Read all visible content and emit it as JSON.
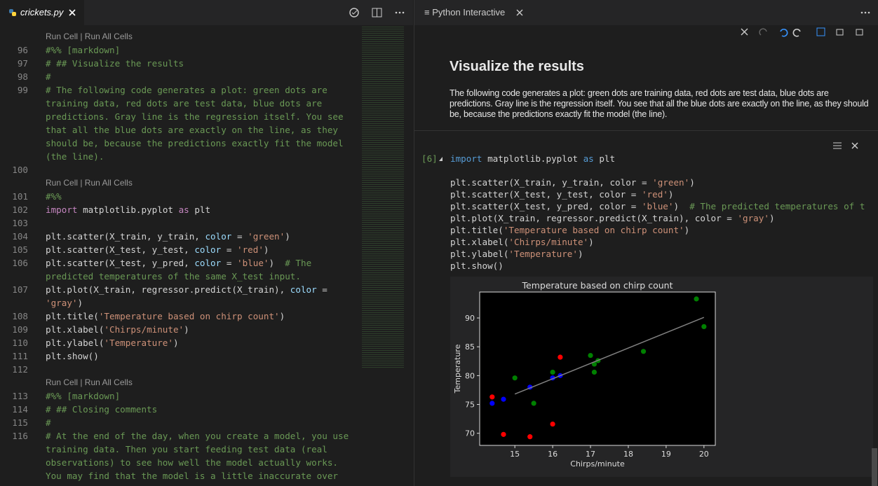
{
  "editor": {
    "tab": "crickets.py",
    "colors": {
      "c": "#6a9955",
      "k": "#c586c0",
      "s": "#ce9178",
      "p": "#9cdcfe",
      "t": "#d4d4d4"
    },
    "rows": [
      {
        "lens": "Run Cell | Run All Cells"
      },
      {
        "num": 96,
        "parts": [
          [
            "#%% [markdown]",
            "c"
          ]
        ]
      },
      {
        "num": 97,
        "parts": [
          [
            "# ## Visualize the results",
            "c"
          ]
        ]
      },
      {
        "num": 98,
        "parts": [
          [
            "#",
            "c"
          ]
        ]
      },
      {
        "num": 99,
        "parts": [
          [
            "# The following code generates a plot: green dots are",
            "c"
          ]
        ]
      },
      {
        "num": null,
        "parts": [
          [
            "training data, red dots are test data, blue dots are",
            "c"
          ]
        ]
      },
      {
        "num": null,
        "parts": [
          [
            "predictions. Gray line is the regression itself. You see",
            "c"
          ]
        ]
      },
      {
        "num": null,
        "parts": [
          [
            "that all the blue dots are exactly on the line, as they",
            "c"
          ]
        ]
      },
      {
        "num": null,
        "parts": [
          [
            "should be, because the predictions exactly fit the model",
            "c"
          ]
        ]
      },
      {
        "num": null,
        "parts": [
          [
            "(the line).",
            "c"
          ]
        ]
      },
      {
        "num": 100,
        "parts": []
      },
      {
        "lens": "Run Cell | Run All Cells"
      },
      {
        "num": 101,
        "parts": [
          [
            "#%%",
            "c"
          ]
        ]
      },
      {
        "num": 102,
        "parts": [
          [
            "import",
            "k"
          ],
          [
            " matplotlib.pyplot ",
            "t"
          ],
          [
            "as",
            "k"
          ],
          [
            " plt",
            "t"
          ]
        ]
      },
      {
        "num": 103,
        "parts": []
      },
      {
        "num": 104,
        "parts": [
          [
            "plt.scatter(X_train, y_train, ",
            "t"
          ],
          [
            "color",
            "p"
          ],
          [
            " = ",
            "t"
          ],
          [
            "'green'",
            "s"
          ],
          [
            ")",
            "t"
          ]
        ]
      },
      {
        "num": 105,
        "parts": [
          [
            "plt.scatter(X_test, y_test, ",
            "t"
          ],
          [
            "color",
            "p"
          ],
          [
            " = ",
            "t"
          ],
          [
            "'red'",
            "s"
          ],
          [
            ")",
            "t"
          ]
        ]
      },
      {
        "num": 106,
        "parts": [
          [
            "plt.scatter(X_test, y_pred, ",
            "t"
          ],
          [
            "color",
            "p"
          ],
          [
            " = ",
            "t"
          ],
          [
            "'blue'",
            "s"
          ],
          [
            ")  ",
            "t"
          ],
          [
            "# The",
            "c"
          ]
        ]
      },
      {
        "num": null,
        "parts": [
          [
            "predicted temperatures of the same X_test input.",
            "c"
          ]
        ]
      },
      {
        "num": 107,
        "parts": [
          [
            "plt.plot(X_train, regressor.predict(X_train), ",
            "t"
          ],
          [
            "color",
            "p"
          ],
          [
            " =",
            "t"
          ]
        ]
      },
      {
        "num": null,
        "parts": [
          [
            "'gray'",
            "s"
          ],
          [
            ")",
            "t"
          ]
        ]
      },
      {
        "num": 108,
        "parts": [
          [
            "plt.title(",
            "t"
          ],
          [
            "'Temperature based on chirp count'",
            "s"
          ],
          [
            ")",
            "t"
          ]
        ]
      },
      {
        "num": 109,
        "parts": [
          [
            "plt.xlabel(",
            "t"
          ],
          [
            "'Chirps/minute'",
            "s"
          ],
          [
            ")",
            "t"
          ]
        ]
      },
      {
        "num": 110,
        "parts": [
          [
            "plt.ylabel(",
            "t"
          ],
          [
            "'Temperature'",
            "s"
          ],
          [
            ")",
            "t"
          ]
        ]
      },
      {
        "num": 111,
        "parts": [
          [
            "plt.show()",
            "t"
          ]
        ]
      },
      {
        "num": 112,
        "parts": []
      },
      {
        "lens": "Run Cell | Run All Cells"
      },
      {
        "num": 113,
        "parts": [
          [
            "#%% [markdown]",
            "c"
          ]
        ]
      },
      {
        "num": 114,
        "parts": [
          [
            "# ## Closing comments",
            "c"
          ]
        ]
      },
      {
        "num": 115,
        "parts": [
          [
            "#",
            "c"
          ]
        ]
      },
      {
        "num": 116,
        "parts": [
          [
            "# At the end of the day, when you create a model, you use",
            "c"
          ]
        ]
      },
      {
        "num": null,
        "parts": [
          [
            "training data. Then you start feeding test data (real",
            "c"
          ]
        ]
      },
      {
        "num": null,
        "parts": [
          [
            "observations) to see how well the model actually works.",
            "c"
          ]
        ]
      },
      {
        "num": null,
        "parts": [
          [
            "You may find that the model is a little inaccurate over",
            "c"
          ]
        ]
      }
    ]
  },
  "interactive": {
    "tab": "Python Interactive",
    "markdown": {
      "heading": "Visualize the results",
      "text": "The following code generates a plot: green dots are training data, red dots are test data, blue dots are predictions. Gray line is the regression itself. You see that all the blue dots are exactly on the line, as they should be, because the predictions exactly fit the model (the line)."
    },
    "cell": {
      "count": "[6]",
      "colors": {
        "k": "#569cd6",
        "s": "#ce9178",
        "c": "#6a9955",
        "t": "#d4d4d4"
      },
      "lines": [
        [
          [
            "import",
            "k"
          ],
          [
            " matplotlib.pyplot ",
            "t"
          ],
          [
            "as",
            "k"
          ],
          [
            " plt",
            "t"
          ]
        ],
        [],
        [
          [
            "plt.scatter(X_train, y_train, color = ",
            "t"
          ],
          [
            "'green'",
            "s"
          ],
          [
            ")",
            "t"
          ]
        ],
        [
          [
            "plt.scatter(X_test, y_test, color = ",
            "t"
          ],
          [
            "'red'",
            "s"
          ],
          [
            ")",
            "t"
          ]
        ],
        [
          [
            "plt.scatter(X_test, y_pred, color = ",
            "t"
          ],
          [
            "'blue'",
            "s"
          ],
          [
            ")  ",
            "t"
          ],
          [
            "# The predicted temperatures of t",
            "c"
          ]
        ],
        [
          [
            "plt.plot(X_train, regressor.predict(X_train), color = ",
            "t"
          ],
          [
            "'gray'",
            "s"
          ],
          [
            ")",
            "t"
          ]
        ],
        [
          [
            "plt.title(",
            "t"
          ],
          [
            "'Temperature based on chirp count'",
            "s"
          ],
          [
            ")",
            "t"
          ]
        ],
        [
          [
            "plt.xlabel(",
            "t"
          ],
          [
            "'Chirps/minute'",
            "s"
          ],
          [
            ")",
            "t"
          ]
        ],
        [
          [
            "plt.ylabel(",
            "t"
          ],
          [
            "'Temperature'",
            "s"
          ],
          [
            ")",
            "t"
          ]
        ],
        [
          [
            "plt.show()",
            "t"
          ]
        ]
      ]
    }
  },
  "chart_data": {
    "type": "scatter",
    "title": "Temperature based on chirp count",
    "x_label": "Chirps/minute",
    "y_label": "Temperature",
    "xlim": [
      14.07,
      20.3
    ],
    "ylim": [
      67.9,
      94.5
    ],
    "xticks": [
      15,
      16,
      17,
      18,
      19,
      20
    ],
    "yticks": [
      70,
      75,
      80,
      85,
      90
    ],
    "series": [
      {
        "color": "#008000",
        "x": [
          20.0,
          19.8,
          18.4,
          17.0,
          17.2,
          17.1,
          17.1,
          16.0,
          15.0,
          15.5
        ],
        "values": [
          88.5,
          93.3,
          84.2,
          83.5,
          82.6,
          82.0,
          80.6,
          80.6,
          79.6,
          75.2
        ]
      },
      {
        "color": "#ff0000",
        "x": [
          16.2,
          14.4,
          14.7,
          15.4,
          16.0
        ],
        "values": [
          83.2,
          76.3,
          69.8,
          69.4,
          71.6
        ]
      },
      {
        "color": "#0000ff",
        "x": [
          14.4,
          14.7,
          15.4,
          16.2,
          16.0
        ],
        "values": [
          75.2,
          75.9,
          78.0,
          80.0,
          79.6
        ]
      }
    ],
    "line": {
      "color": "#808080",
      "x": [
        15.0,
        20.0
      ],
      "values": [
        76.8,
        90.1
      ]
    }
  }
}
